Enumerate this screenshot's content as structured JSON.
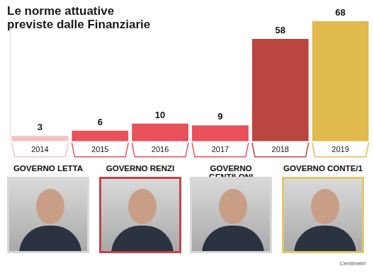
{
  "chart_data": {
    "type": "bar",
    "title": "Le norme attuative previste dalle Finanziarie",
    "categories": [
      "2014",
      "2015",
      "2016",
      "2017",
      "2018",
      "2019"
    ],
    "values": [
      3,
      6,
      10,
      9,
      58,
      68
    ],
    "colors": [
      "#f5c1c1",
      "#e8505a",
      "#e8505a",
      "#e8505a",
      "#b9463f",
      "#e2bb4f"
    ],
    "ylim": [
      0,
      70
    ],
    "yticks": [],
    "grid": false,
    "data_labels": true,
    "tick_labels": "x",
    "annotations": [
      "GOVERNO LETTA",
      "GOVERNO RENZI",
      "GOVERNO GENTILONI",
      "GOVERNO CONTE/1"
    ],
    "source": "Centimetri"
  }
}
